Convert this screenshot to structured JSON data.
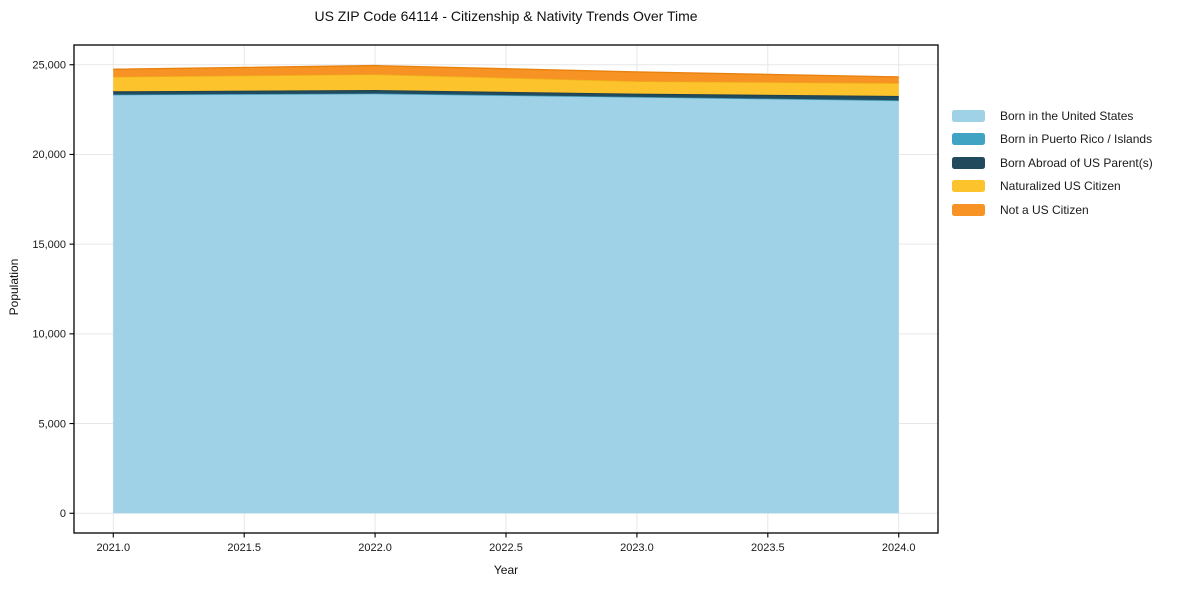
{
  "title": "US ZIP Code 64114 - Citizenship & Nativity Trends Over Time",
  "chart_data": {
    "type": "area",
    "stacked": true,
    "title": "US ZIP Code 64114 - Citizenship & Nativity Trends Over Time",
    "xlabel": "Year",
    "ylabel": "Population",
    "x": [
      2021,
      2022,
      2023,
      2024
    ],
    "series": [
      {
        "name": "Born in the United States",
        "values": [
          23320,
          23380,
          23190,
          23000
        ],
        "color": "#a0d2e7",
        "edge": "#8cc3dc"
      },
      {
        "name": "Born in Puerto Rico / Islands",
        "values": [
          20,
          20,
          20,
          20
        ],
        "color": "#41a3c4",
        "edge": "#3792b1"
      },
      {
        "name": "Born Abroad of US Parent(s)",
        "values": [
          180,
          190,
          180,
          240
        ],
        "color": "#214a5c",
        "edge": "#1a3d4d"
      },
      {
        "name": "Naturalized US Citizen",
        "values": [
          805,
          875,
          685,
          710
        ],
        "color": "#fcc32d",
        "edge": "#f0b319"
      },
      {
        "name": "Not a US Citizen",
        "values": [
          425,
          485,
          525,
          350
        ],
        "color": "#f79324",
        "edge": "#e8820e"
      }
    ],
    "xlim": [
      2020.85,
      2024.15
    ],
    "ylim": [
      -1100,
      26100
    ],
    "x_ticks": [
      {
        "value": 2021.0,
        "label": "2021.0"
      },
      {
        "value": 2021.5,
        "label": "2021.5"
      },
      {
        "value": 2022.0,
        "label": "2022.0"
      },
      {
        "value": 2022.5,
        "label": "2022.5"
      },
      {
        "value": 2023.0,
        "label": "2023.0"
      },
      {
        "value": 2023.5,
        "label": "2023.5"
      },
      {
        "value": 2024.0,
        "label": "2024.0"
      }
    ],
    "y_ticks": [
      {
        "value": 0,
        "label": "0"
      },
      {
        "value": 5000,
        "label": "5,000"
      },
      {
        "value": 10000,
        "label": "10,000"
      },
      {
        "value": 15000,
        "label": "15,000"
      },
      {
        "value": 20000,
        "label": "20,000"
      },
      {
        "value": 25000,
        "label": "25,000"
      }
    ],
    "grid": true,
    "grid_color": "#e7e7e7",
    "spine_color": "#000000",
    "background_color": "#ffffff",
    "legend_position": "right"
  }
}
